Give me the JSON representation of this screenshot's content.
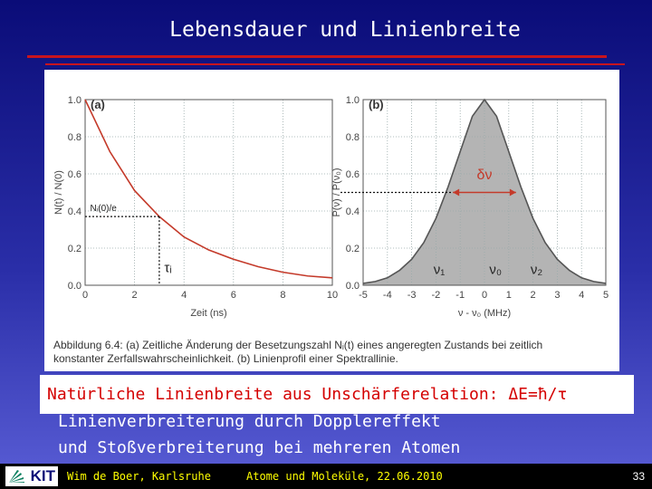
{
  "slide": {
    "title": "Lebensdauer und Linienbreite",
    "banner": "Natürliche Linienbreite aus Unschärferelation: ΔE=ħ/τ",
    "lines": [
      "Linienverbreiterung durch Dopplereffekt",
      "und Stoßverbreiterung bei mehreren Atomen"
    ],
    "footer": {
      "logo": "KIT",
      "author": "Wim de Boer, Karlsruhe",
      "course": "Atome und Moleküle, 22.06.2010",
      "page": "33"
    },
    "colors": {
      "background": "#1c1e96",
      "accent_rule": "#c8141e",
      "banner_text": "#d40000",
      "footer_text": "#ffff00"
    }
  },
  "figure": {
    "caption_lines": [
      "Abbildung 6.4: (a) Zeitliche Änderung der Besetzungszahl Nᵢ(t) eines angeregten Zustands bei zeitlich",
      "konstanter Zerfallswahrscheinlichkeit. (b) Linienprofil einer Spektrallinie."
    ]
  },
  "chart_data": [
    {
      "type": "line",
      "panel_label": "(a)",
      "xlabel": "Zeit  (ns)",
      "ylabel": "N(t) / N(0)",
      "xlim": [
        0,
        10
      ],
      "ylim": [
        0,
        1
      ],
      "x_ticks": [
        "0",
        "2",
        "4",
        "6",
        "8",
        "10"
      ],
      "y_ticks": [
        "0.0",
        "0.2",
        "0.4",
        "0.6",
        "0.8",
        "1.0"
      ],
      "grid": true,
      "x": [
        0,
        1,
        2,
        3,
        4,
        5,
        6,
        7,
        8,
        9,
        10
      ],
      "y": [
        1.0,
        0.72,
        0.51,
        0.37,
        0.26,
        0.19,
        0.14,
        0.1,
        0.07,
        0.05,
        0.04
      ],
      "annotations": [
        {
          "text": "Nᵢ(0)/e",
          "x": 0.2,
          "y": 0.4
        },
        {
          "text": "τᵢ",
          "x": 3.2,
          "y": 0.07
        }
      ],
      "marker": {
        "tau": 3,
        "value": 0.37
      }
    },
    {
      "type": "area",
      "panel_label": "(b)",
      "xlabel": "ν - ν₀  (MHz)",
      "ylabel": "P(ν) / P(ν₀)",
      "xlim": [
        -5,
        5
      ],
      "ylim": [
        0,
        1
      ],
      "x_ticks": [
        "-5",
        "-4",
        "-3",
        "-2",
        "-1",
        "0",
        "1",
        "2",
        "3",
        "4",
        "5"
      ],
      "y_ticks": [
        "0.0",
        "0.2",
        "0.4",
        "0.6",
        "0.8",
        "1.0"
      ],
      "grid": true,
      "x": [
        -5,
        -4.5,
        -4,
        -3.5,
        -3,
        -2.5,
        -2,
        -1.5,
        -1,
        -0.5,
        0,
        0.5,
        1,
        1.5,
        2,
        2.5,
        3,
        3.5,
        4,
        4.5,
        5
      ],
      "y": [
        0.01,
        0.02,
        0.04,
        0.08,
        0.14,
        0.23,
        0.36,
        0.53,
        0.72,
        0.91,
        1.0,
        0.91,
        0.72,
        0.53,
        0.36,
        0.23,
        0.14,
        0.08,
        0.04,
        0.02,
        0.01
      ],
      "fill_color": "#b4b4b4",
      "annotations": [
        {
          "text": "δν",
          "x": 0,
          "y": 0.57
        },
        {
          "text": "ν₁",
          "x": -2.1,
          "y": 0.06
        },
        {
          "text": "ν₀",
          "x": 0.2,
          "y": 0.06
        },
        {
          "text": "ν₂",
          "x": 1.9,
          "y": 0.06
        }
      ],
      "fwhm": {
        "left": -1.3,
        "right": 1.3,
        "level": 0.5
      }
    }
  ]
}
